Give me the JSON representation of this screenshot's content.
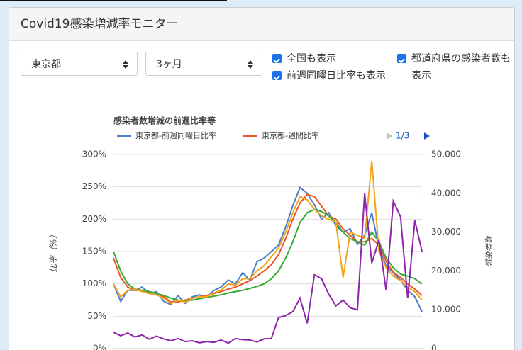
{
  "header": {
    "title": "Covid19感染増減率モニター"
  },
  "controls": {
    "selects": [
      "東京都",
      "3ヶ月"
    ],
    "checkboxes": [
      "全国も表示",
      "前週同曜日比率も表示",
      "都道府県の感染者数も表示"
    ]
  },
  "chart_data": {
    "type": "line",
    "title": "感染者数増減の前週比率等",
    "pager": "1/3",
    "ylabel": "比率（%）",
    "y2label": "感染者数",
    "grid": true,
    "ylim": [
      0,
      300
    ],
    "yticks": [
      {
        "value": 0,
        "label": "0%"
      },
      {
        "value": 50,
        "label": "50%"
      },
      {
        "value": 100,
        "label": "100%"
      },
      {
        "value": 150,
        "label": "150%"
      },
      {
        "value": 200,
        "label": "200%"
      },
      {
        "value": 250,
        "label": "250%"
      },
      {
        "value": 300,
        "label": "300%"
      }
    ],
    "y2lim": [
      0,
      50000
    ],
    "y2ticks": [
      0,
      {
        "value": 10000,
        "label": "10,000"
      },
      {
        "value": 20000,
        "label": "20,000"
      },
      {
        "value": 30000,
        "label": "30,000"
      },
      {
        "value": 40000,
        "label": "40,000"
      },
      {
        "value": 50000,
        "label": "50,000"
      }
    ],
    "series": [
      {
        "name": "東京都-前週同曜日比率",
        "color": "#4a7fc8",
        "values": [
          100,
          73,
          90,
          90,
          95,
          85,
          88,
          73,
          68,
          82,
          70,
          80,
          83,
          79,
          90,
          95,
          106,
          100,
          117,
          106,
          134,
          140,
          150,
          160,
          188,
          221,
          249,
          240,
          222,
          200,
          210,
          190,
          180,
          185,
          161,
          175,
          210,
          155,
          128,
          117,
          106,
          90,
          80,
          57
        ]
      },
      {
        "name": "東京都-週間比率",
        "color": "#e8572b",
        "values": [
          140,
          110,
          95,
          90,
          90,
          88,
          85,
          80,
          72,
          72,
          75,
          78,
          80,
          82,
          85,
          88,
          92,
          95,
          100,
          105,
          112,
          120,
          130,
          145,
          170,
          200,
          225,
          238,
          235,
          220,
          205,
          200,
          185,
          175,
          165,
          165,
          170,
          160,
          135,
          118,
          110,
          100,
          92,
          82
        ]
      },
      {
        "color": "#3aaa35",
        "values": [
          150,
          120,
          100,
          92,
          90,
          88,
          85,
          82,
          78,
          75,
          74,
          75,
          77,
          79,
          81,
          83,
          86,
          88,
          90,
          93,
          96,
          100,
          108,
          120,
          140,
          165,
          195,
          210,
          215,
          212,
          205,
          195,
          180,
          170,
          165,
          160,
          180,
          165,
          140,
          125,
          115,
          112,
          108,
          100
        ]
      },
      {
        "color": "#f2a51b",
        "values": [
          100,
          80,
          90,
          92,
          88,
          85,
          83,
          78,
          70,
          75,
          72,
          78,
          80,
          80,
          86,
          90,
          100,
          98,
          108,
          108,
          120,
          128,
          142,
          155,
          180,
          210,
          235,
          230,
          215,
          205,
          200,
          195,
          110,
          180,
          175,
          170,
          290,
          150,
          125,
          112,
          105,
          95,
          88,
          75
        ]
      },
      {
        "color": "#8e24aa",
        "axis": "y2",
        "values": [
          4200,
          3300,
          4000,
          3000,
          3500,
          2400,
          3200,
          2500,
          2000,
          2600,
          1800,
          2000,
          1500,
          1800,
          1600,
          2200,
          1400,
          2600,
          2300,
          2200,
          1700,
          2500,
          2600,
          8000,
          8500,
          9500,
          13000,
          6500,
          19000,
          18000,
          14000,
          11000,
          12500,
          10500,
          10000,
          40000,
          22000,
          28000,
          15000,
          38000,
          34000,
          13000,
          33000,
          25000
        ]
      }
    ]
  }
}
